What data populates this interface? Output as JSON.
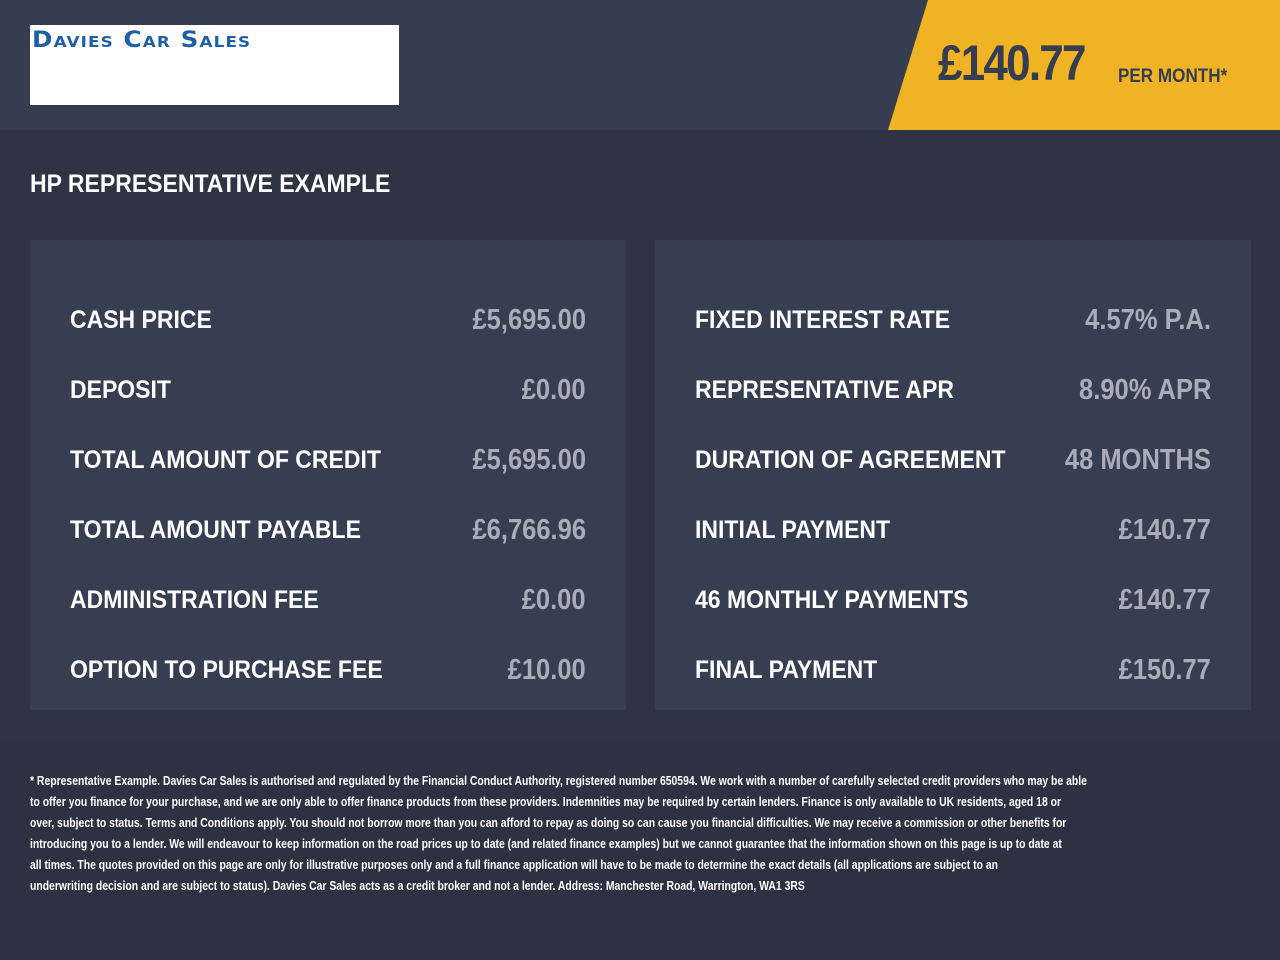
{
  "logo": {
    "text": "Davies Car Sales"
  },
  "badge": {
    "amount": "£140.77",
    "suffix": "PER MONTH*",
    "color": "#f0b323"
  },
  "title": "HP REPRESENTATIVE EXAMPLE",
  "left": [
    {
      "label": "CASH PRICE",
      "value": "£5,695.00"
    },
    {
      "label": "DEPOSIT",
      "value": "£0.00"
    },
    {
      "label": "TOTAL AMOUNT OF CREDIT",
      "value": "£5,695.00"
    },
    {
      "label": "TOTAL AMOUNT PAYABLE",
      "value": "£6,766.96"
    },
    {
      "label": "ADMINISTRATION FEE",
      "value": "£0.00"
    },
    {
      "label": "OPTION TO PURCHASE FEE",
      "value": "£10.00"
    }
  ],
  "right": [
    {
      "label": "FIXED INTEREST RATE",
      "value": "4.57% P.A."
    },
    {
      "label": "REPRESENTATIVE APR",
      "value": "8.90% APR"
    },
    {
      "label": "DURATION OF AGREEMENT",
      "value": "48 MONTHS"
    },
    {
      "label": "INITIAL PAYMENT",
      "value": "£140.77"
    },
    {
      "label": "46 MONTHLY PAYMENTS",
      "value": "£140.77"
    },
    {
      "label": "FINAL PAYMENT",
      "value": "£150.77"
    }
  ],
  "disclaimer": [
    "* Representative Example. Davies Car Sales  is authorised and regulated by the Financial Conduct Authority, registered number 650594. We work with a number of carefully selected credit providers who may be able",
    "to offer you finance for your purchase, and we are only able to offer finance products from these providers. Indemnities may be required by certain lenders. Finance is only available to UK residents, aged 18 or",
    "over, subject to status. Terms and Conditions apply. You should not borrow more than you can afford to repay as doing so can cause you financial difficulties. We may receive a commission or other benefits for",
    "introducing you to a lender. We will endeavour to keep information on the road prices up to date (and related finance examples) but we cannot guarantee that the information shown on this page is up to date at",
    "all times. The quotes provided on this page are only for illustrative purposes only and a full finance application will have to be made to determine the exact details (all applications are subject to an",
    "underwriting decision and are subject to status). Davies Car Sales  acts as a credit broker and not a lender. Address: Manchester Road, Warrington, WA1 3RS"
  ]
}
